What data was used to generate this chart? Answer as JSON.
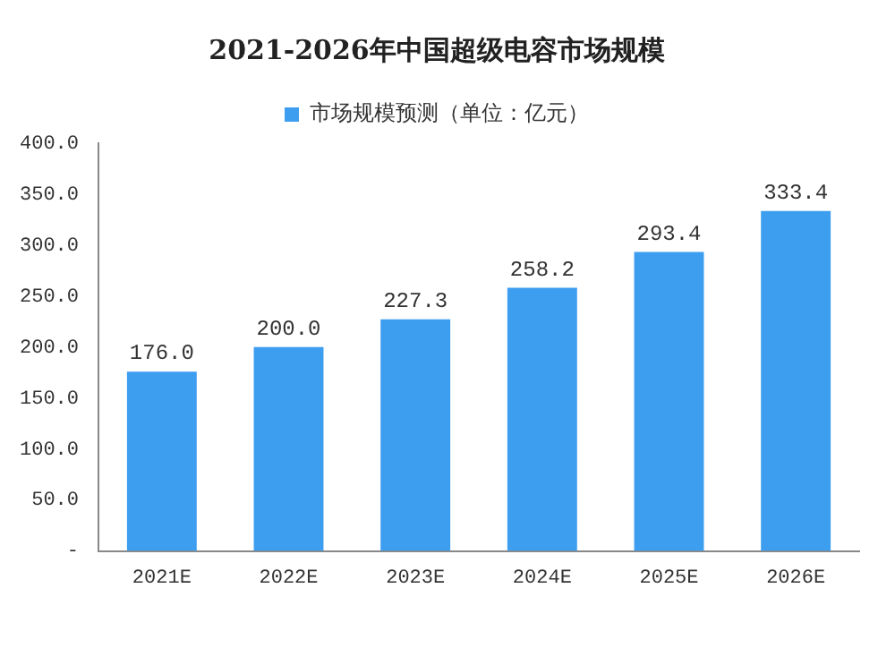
{
  "chart_data": {
    "type": "bar",
    "title": "2021-2026年中国超级电容市场规模",
    "categories": [
      "2021E",
      "2022E",
      "2023E",
      "2024E",
      "2025E",
      "2026E"
    ],
    "series": [
      {
        "name": "市场规模预测（单位：亿元）",
        "color": "#3d9ef0",
        "values": [
          176.0,
          200.0,
          227.3,
          258.2,
          293.4,
          333.4
        ],
        "value_labels": [
          "176.0",
          "200.0",
          "227.3",
          "258.2",
          "293.4",
          "333.4"
        ]
      }
    ],
    "ylim": [
      0,
      400
    ],
    "yticks": [
      {
        "value": 0,
        "label": "-"
      },
      {
        "value": 50,
        "label": "50.0"
      },
      {
        "value": 100,
        "label": "100.0"
      },
      {
        "value": 150,
        "label": "150.0"
      },
      {
        "value": 200,
        "label": "200.0"
      },
      {
        "value": 250,
        "label": "250.0"
      },
      {
        "value": 300,
        "label": "300.0"
      },
      {
        "value": 350,
        "label": "350.0"
      },
      {
        "value": 400,
        "label": "400.0"
      }
    ],
    "grid": false,
    "legend": "top"
  }
}
